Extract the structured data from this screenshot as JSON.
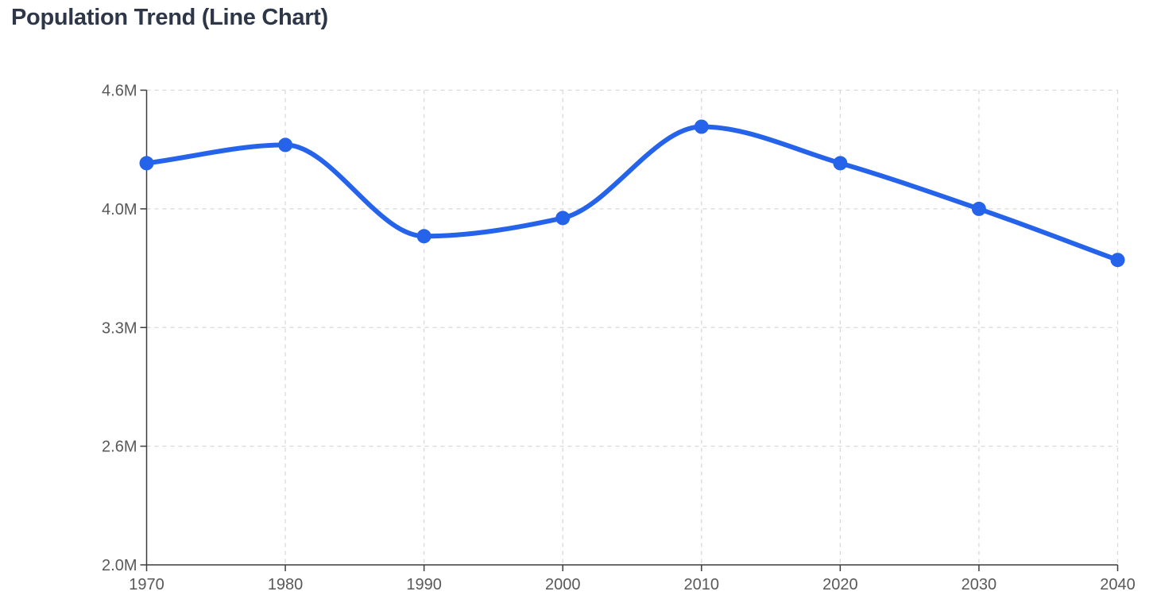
{
  "header": {
    "title": "Population Trend (Line Chart)"
  },
  "chart_data": {
    "type": "line",
    "title": "Population Trend (Line Chart)",
    "x_categories": [
      "1970",
      "1980",
      "1990",
      "2000",
      "2010",
      "2020",
      "2030",
      "2040"
    ],
    "series": [
      {
        "name": "Population",
        "values_millions": [
          4.2,
          4.3,
          3.8,
          3.9,
          4.4,
          4.2,
          3.95,
          3.67
        ]
      }
    ],
    "y_ticks": [
      {
        "label": "4.6M",
        "value": 4.6
      },
      {
        "label": "4.0M",
        "value": 3.95
      },
      {
        "label": "3.3M",
        "value": 3.3
      },
      {
        "label": "2.6M",
        "value": 2.65
      },
      {
        "label": "2.0M",
        "value": 2.0
      }
    ],
    "ylim": [
      2.0,
      4.6
    ],
    "xlabel": "",
    "ylabel": "",
    "legend": "none",
    "grid": "dashed",
    "curve": "monotone",
    "point_radius": 9,
    "line_width": 6,
    "colors": {
      "line": "#2563eb",
      "point": "#2563eb",
      "grid": "#d9d9d9",
      "axis": "#3d3d3d",
      "tick_label": "#595959",
      "title": "#2d3748",
      "background": "#ffffff"
    }
  }
}
